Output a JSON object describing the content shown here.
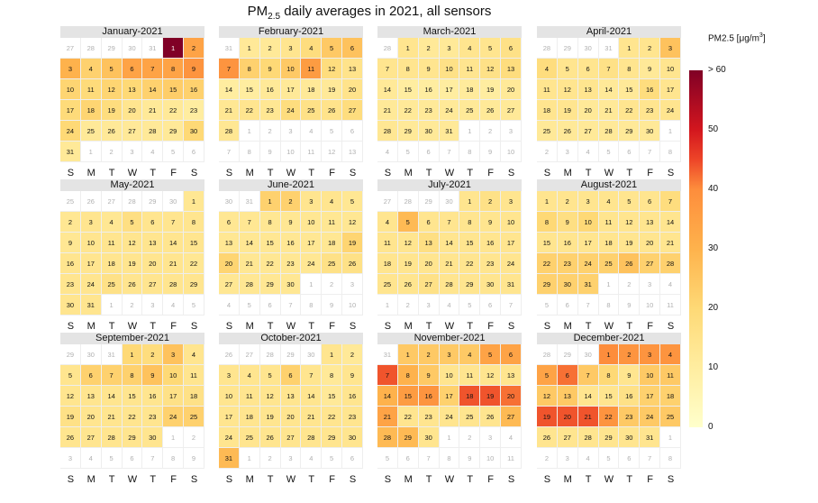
{
  "title": {
    "prefix": "PM",
    "sub": "2.5",
    "suffix": " daily averages in 2021, all sensors"
  },
  "legend": {
    "title_prefix": "PM2.5 [",
    "unit_base": "μg/m",
    "unit_exp": "3",
    "title_suffix": "]",
    "ticks": [
      "> 60",
      "50",
      "40",
      "30",
      "20",
      "10",
      "0"
    ],
    "tick_values": [
      60,
      50,
      40,
      30,
      20,
      10,
      0
    ],
    "max": 60
  },
  "weekdays": [
    "S",
    "M",
    "T",
    "W",
    "T",
    "F",
    "S"
  ],
  "chart_data": {
    "type": "heatmap",
    "title": "PM2.5 daily averages in 2021, all sensors",
    "value_label": "PM2.5 [μg/m3]",
    "range": [
      0,
      60
    ],
    "months": [
      {
        "name": "January-2021",
        "days": 31,
        "offset": 5,
        "values": [
          60,
          34,
          30,
          22,
          26,
          34,
          34,
          34,
          38,
          21,
          19,
          21,
          20,
          22,
          23,
          22,
          19,
          21,
          18,
          14,
          12,
          12,
          10,
          20,
          12,
          12,
          12,
          12,
          12,
          20,
          12
        ]
      },
      {
        "name": "February-2021",
        "days": 28,
        "offset": 1,
        "values": [
          12,
          12,
          14,
          18,
          24,
          26,
          38,
          22,
          20,
          24,
          36,
          18,
          15,
          10,
          10,
          12,
          12,
          12,
          12,
          15,
          13,
          14,
          13,
          18,
          16,
          15,
          18,
          13
        ]
      },
      {
        "name": "March-2021",
        "days": 31,
        "offset": 1,
        "values": [
          14,
          12,
          12,
          14,
          14,
          16,
          14,
          14,
          14,
          16,
          14,
          16,
          18,
          12,
          10,
          10,
          10,
          11,
          10,
          12,
          12,
          12,
          12,
          12,
          12,
          12,
          12,
          13,
          12,
          12,
          12
        ]
      },
      {
        "name": "April-2021",
        "days": 30,
        "offset": 4,
        "values": [
          14,
          14,
          26,
          18,
          14,
          14,
          16,
          14,
          12,
          14,
          14,
          14,
          14,
          12,
          12,
          18,
          14,
          14,
          14,
          12,
          12,
          14,
          14,
          14,
          12,
          12,
          12,
          12,
          12,
          12
        ]
      },
      {
        "name": "May-2021",
        "days": 31,
        "offset": 6,
        "values": [
          13,
          13,
          14,
          13,
          17,
          14,
          14,
          14,
          13,
          14,
          14,
          14,
          14,
          14,
          14,
          14,
          14,
          14,
          14,
          14,
          14,
          13,
          14,
          14,
          16,
          14,
          14,
          14,
          14,
          14,
          14
        ]
      },
      {
        "name": "June-2021",
        "days": 30,
        "offset": 2,
        "values": [
          22,
          22,
          14,
          14,
          13,
          13,
          13,
          13,
          13,
          13,
          13,
          13,
          13,
          13,
          13,
          13,
          13,
          13,
          21,
          21,
          13,
          13,
          13,
          13,
          16,
          16,
          13,
          13,
          13,
          13
        ]
      },
      {
        "name": "July-2021",
        "days": 31,
        "offset": 4,
        "values": [
          14,
          16,
          14,
          14,
          28,
          14,
          14,
          14,
          14,
          14,
          14,
          14,
          17,
          14,
          14,
          14,
          14,
          14,
          14,
          14,
          14,
          14,
          14,
          14,
          14,
          14,
          16,
          14,
          14,
          14,
          14
        ]
      },
      {
        "name": "August-2021",
        "days": 31,
        "offset": 0,
        "values": [
          14,
          14,
          14,
          14,
          14,
          14,
          18,
          20,
          17,
          20,
          14,
          14,
          14,
          14,
          14,
          14,
          14,
          14,
          14,
          14,
          14,
          22,
          22,
          22,
          22,
          26,
          22,
          22,
          22,
          22,
          22
        ]
      },
      {
        "name": "September-2021",
        "days": 30,
        "offset": 3,
        "values": [
          20,
          18,
          26,
          14,
          14,
          22,
          22,
          22,
          26,
          20,
          14,
          14,
          14,
          14,
          14,
          14,
          16,
          16,
          16,
          14,
          14,
          14,
          14,
          22,
          22,
          14,
          14,
          14,
          14,
          14
        ]
      },
      {
        "name": "October-2021",
        "days": 31,
        "offset": 5,
        "values": [
          14,
          12,
          14,
          14,
          14,
          22,
          14,
          12,
          14,
          14,
          14,
          14,
          14,
          14,
          12,
          14,
          14,
          14,
          14,
          14,
          14,
          14,
          14,
          14,
          14,
          14,
          14,
          14,
          14,
          14,
          28
        ]
      },
      {
        "name": "November-2021",
        "days": 30,
        "offset": 1,
        "values": [
          24,
          24,
          24,
          24,
          34,
          34,
          44,
          30,
          24,
          14,
          14,
          14,
          14,
          30,
          36,
          38,
          22,
          44,
          44,
          42,
          34,
          14,
          14,
          14,
          14,
          14,
          28,
          28,
          28,
          14
        ]
      },
      {
        "name": "December-2021",
        "days": 31,
        "offset": 3,
        "values": [
          40,
          38,
          38,
          38,
          34,
          42,
          24,
          20,
          14,
          24,
          24,
          24,
          24,
          14,
          14,
          16,
          22,
          22,
          44,
          44,
          44,
          38,
          24,
          24,
          24,
          14,
          14,
          14,
          14,
          14,
          14
        ]
      }
    ]
  }
}
